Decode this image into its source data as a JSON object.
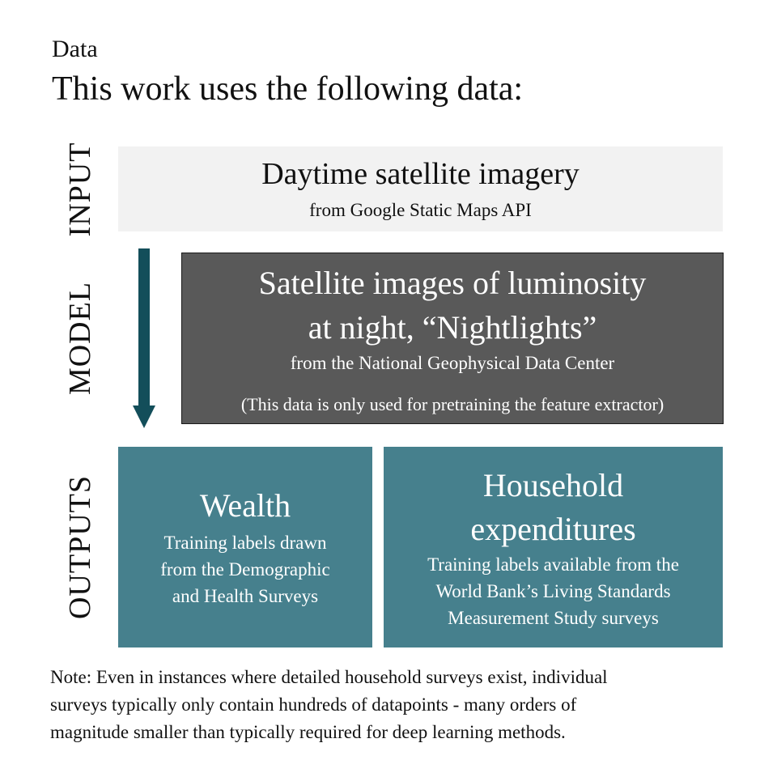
{
  "header": {
    "section_label": "Data",
    "heading": "This work uses the following data:"
  },
  "side_labels": {
    "input": "INPUT",
    "model": "MODEL",
    "outputs": "OUTPUTS"
  },
  "boxes": {
    "input": {
      "title": "Daytime satellite imagery",
      "subtitle": "from Google Static Maps API"
    },
    "model": {
      "title_line1": "Satellite images of luminosity",
      "title_line2": "at night, “Nightlights”",
      "subtitle": "from the National Geophysical Data Center",
      "note": "(This data is only used for pretraining the feature extractor)"
    },
    "wealth": {
      "title": "Wealth",
      "desc_line1": "Training labels drawn",
      "desc_line2": "from the Demographic",
      "desc_line3": "and Health Surveys"
    },
    "household": {
      "title_line1": "Household",
      "title_line2": "expenditures",
      "desc_line1": "Training labels available from the",
      "desc_line2": "World Bank’s Living Standards",
      "desc_line3": "Measurement Study surveys"
    }
  },
  "footer": {
    "note_line1": "Note: Even in instances where detailed household surveys exist, individual",
    "note_line2": "surveys typically only contain hundreds of datapoints - many orders of",
    "note_line3": "magnitude smaller than typically required for deep learning methods."
  },
  "colors": {
    "input_box": "#f2f2f2",
    "model_box": "#595959",
    "output_box": "#46808d",
    "arrow": "#134e5a"
  },
  "icons": {
    "flow_arrow": "arrow-down-icon"
  }
}
